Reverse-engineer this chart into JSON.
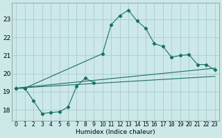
{
  "xlabel": "Humidex (Indice chaleur)",
  "background_color": "#cce8e8",
  "grid_color": "#aacccc",
  "line_color": "#1a7060",
  "x_ticks": [
    0,
    1,
    2,
    3,
    4,
    5,
    6,
    7,
    8,
    9,
    10,
    11,
    12,
    13,
    14,
    15,
    16,
    17,
    18,
    19,
    20,
    21,
    22,
    23
  ],
  "y_ticks": [
    18,
    19,
    20,
    21,
    22,
    23
  ],
  "xlim": [
    -0.5,
    23.5
  ],
  "ylim": [
    17.4,
    23.9
  ],
  "series": [
    {
      "x": [
        0,
        1,
        2,
        3,
        4,
        5,
        6,
        7,
        8,
        9
      ],
      "y": [
        19.2,
        19.2,
        18.5,
        17.8,
        17.85,
        17.9,
        18.15,
        19.3,
        19.75,
        19.5
      ],
      "has_markers": true
    },
    {
      "x": [
        0,
        1,
        10,
        11,
        12,
        13,
        14,
        15,
        16,
        17,
        18,
        19,
        20,
        21,
        22,
        23
      ],
      "y": [
        19.2,
        19.2,
        21.1,
        22.7,
        23.2,
        23.5,
        22.9,
        22.5,
        21.65,
        21.5,
        20.9,
        21.0,
        21.05,
        20.5,
        20.5,
        20.2
      ],
      "has_markers": true
    },
    {
      "x": [
        0,
        23
      ],
      "y": [
        19.2,
        20.3
      ],
      "has_markers": false
    },
    {
      "x": [
        0,
        23
      ],
      "y": [
        19.2,
        19.85
      ],
      "has_markers": false
    }
  ]
}
